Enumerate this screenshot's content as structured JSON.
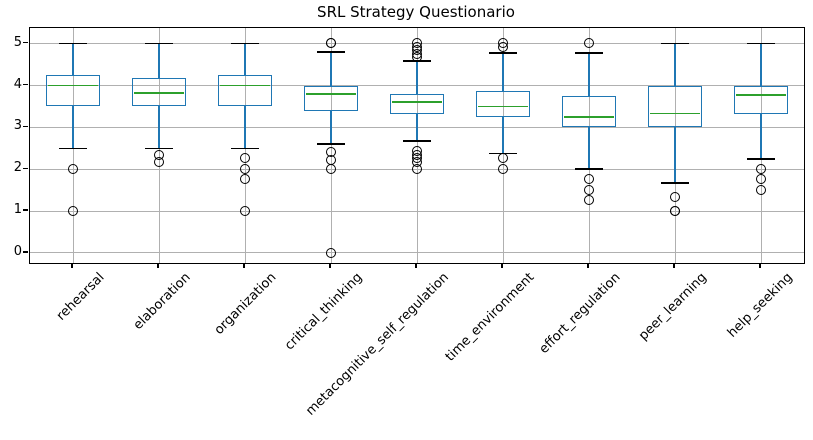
{
  "chart_data": {
    "type": "boxplot",
    "title": "SRL Strategy Questionario",
    "categories": [
      "rehearsal",
      "elaboration",
      "organization",
      "critical_thinking",
      "metacognitive_self_regulation",
      "time_environment",
      "effort_regulation",
      "peer_learning",
      "help_seeking"
    ],
    "boxes": [
      {
        "label": "rehearsal",
        "whisker_low": 2.5,
        "q1": 3.5,
        "median": 4.0,
        "q3": 4.25,
        "whisker_high": 5.0,
        "outliers": [
          2.0,
          1.0
        ]
      },
      {
        "label": "elaboration",
        "whisker_low": 2.5,
        "q1": 3.5,
        "median": 3.83,
        "q3": 4.17,
        "whisker_high": 5.0,
        "outliers": [
          2.33,
          2.17
        ]
      },
      {
        "label": "organization",
        "whisker_low": 2.5,
        "q1": 3.5,
        "median": 4.0,
        "q3": 4.25,
        "whisker_high": 5.0,
        "outliers": [
          2.25,
          2.0,
          1.75,
          1.0
        ]
      },
      {
        "label": "critical_thinking",
        "whisker_low": 2.6,
        "q1": 3.4,
        "median": 3.8,
        "q3": 4.0,
        "whisker_high": 4.8,
        "outliers": [
          5.0,
          5.0,
          2.4,
          2.2,
          2.0,
          0.0
        ]
      },
      {
        "label": "metacognitive_self_regulation",
        "whisker_low": 2.67,
        "q1": 3.33,
        "median": 3.6,
        "q3": 3.79,
        "whisker_high": 4.58,
        "outliers": [
          5.0,
          4.92,
          4.83,
          4.75,
          4.67,
          2.42,
          2.33,
          2.25,
          2.17,
          2.0
        ]
      },
      {
        "label": "time_environment",
        "whisker_low": 2.38,
        "q1": 3.25,
        "median": 3.5,
        "q3": 3.88,
        "whisker_high": 4.78,
        "outliers": [
          5.0,
          4.9,
          2.25,
          2.0
        ]
      },
      {
        "label": "effort_regulation",
        "whisker_low": 2.0,
        "q1": 3.0,
        "median": 3.25,
        "q3": 3.75,
        "whisker_high": 4.78,
        "outliers": [
          5.0,
          1.75,
          1.5,
          1.25
        ]
      },
      {
        "label": "peer_learning",
        "whisker_low": 1.67,
        "q1": 3.0,
        "median": 3.33,
        "q3": 4.0,
        "whisker_high": 5.0,
        "outliers": [
          1.33,
          1.0,
          1.0
        ]
      },
      {
        "label": "help_seeking",
        "whisker_low": 2.25,
        "q1": 3.31,
        "median": 3.77,
        "q3": 4.0,
        "whisker_high": 5.0,
        "outliers": [
          2.0,
          1.75,
          1.5
        ]
      }
    ],
    "y_axis": {
      "ticks": [
        0,
        1,
        2,
        3,
        4,
        5
      ],
      "lim": [
        -0.24,
        5.375
      ]
    },
    "x_tick_rotation_deg": 45,
    "grid": true,
    "legend": "none",
    "colors": {
      "box": "#1f77b4",
      "whisker": "#1f77b4",
      "cap": "#000000",
      "median": "#2ca02c",
      "outlier": "#000000",
      "grid": "#b0b0b0",
      "spine": "#000000",
      "background": "#ffffff"
    }
  }
}
